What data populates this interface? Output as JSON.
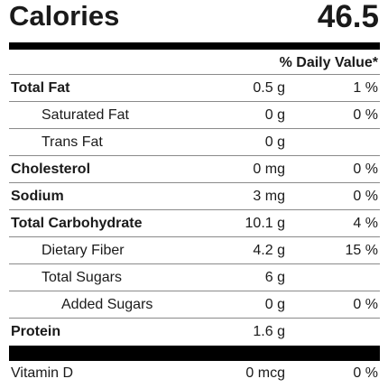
{
  "calories": {
    "label": "Calories",
    "value": "46.5"
  },
  "daily_value_header": "% Daily Value*",
  "nutrients": [
    {
      "name": "Total Fat",
      "amount": "0.5 g",
      "dv": "1 %"
    },
    {
      "name": "Saturated Fat",
      "amount": "0 g",
      "dv": "0 %"
    },
    {
      "name": "Trans Fat",
      "amount": "0 g",
      "dv": ""
    },
    {
      "name": "Cholesterol",
      "amount": "0 mg",
      "dv": "0 %"
    },
    {
      "name": "Sodium",
      "amount": "3 mg",
      "dv": "0 %"
    },
    {
      "name": "Total Carbohydrate",
      "amount": "10.1 g",
      "dv": "4 %"
    },
    {
      "name": "Dietary Fiber",
      "amount": "4.2 g",
      "dv": "15 %"
    },
    {
      "name": "Total Sugars",
      "amount": "6 g",
      "dv": ""
    },
    {
      "name": "Added Sugars",
      "amount": "0 g",
      "dv": "0 %"
    },
    {
      "name": "Protein",
      "amount": "1.6 g",
      "dv": ""
    }
  ],
  "vitamins": [
    {
      "name": "Vitamin D",
      "amount": "0 mcg",
      "dv": "0 %"
    }
  ]
}
